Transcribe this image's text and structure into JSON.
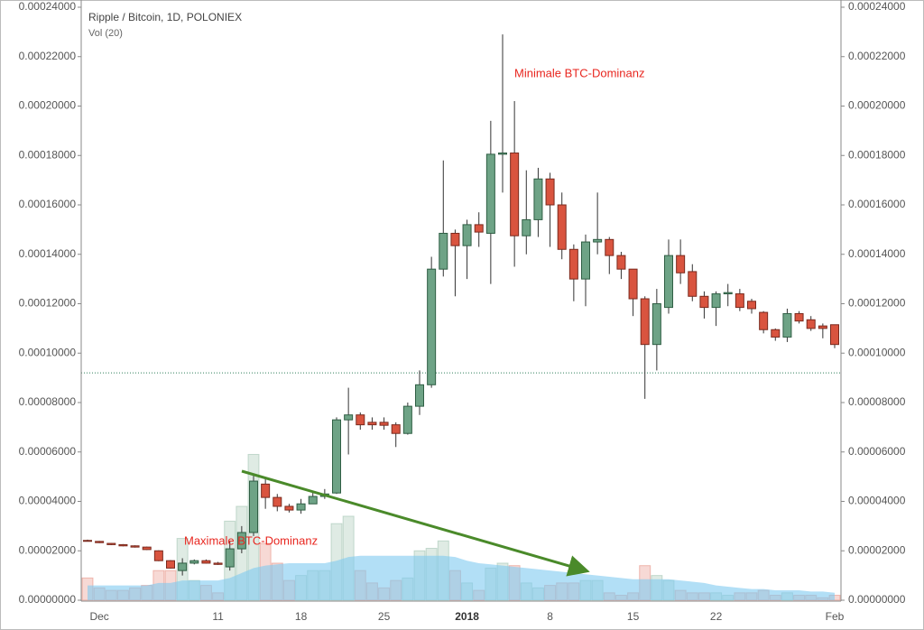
{
  "chart_data": {
    "type": "candlestick",
    "title": "Ripple / Bitcoin, 1D, POLONIEX",
    "subtitle": "Vol (20)",
    "categories": [
      null,
      "Dec",
      null,
      null,
      null,
      null,
      null,
      null,
      null,
      null,
      null,
      "11",
      null,
      null,
      null,
      null,
      null,
      null,
      "18",
      null,
      null,
      null,
      null,
      null,
      null,
      "25",
      null,
      null,
      null,
      null,
      null,
      null,
      "2018",
      null,
      null,
      null,
      null,
      null,
      null,
      "8",
      null,
      null,
      null,
      null,
      null,
      null,
      "15",
      null,
      null,
      null,
      null,
      null,
      null,
      "22",
      null,
      null,
      null,
      null,
      null,
      null,
      null,
      null,
      null,
      "Feb"
    ],
    "open": [
      2.42e-05,
      2.38e-05,
      2.3e-05,
      2.25e-05,
      2.2e-05,
      2.15e-05,
      2e-05,
      1.6e-05,
      1.2e-05,
      1.5e-05,
      1.6e-05,
      1.5e-05,
      1.35e-05,
      2.08e-05,
      2.74e-05,
      4.7e-05,
      4.16e-05,
      3.8e-05,
      3.65e-05,
      3.9e-05,
      4.2e-05,
      4.34e-05,
      7.3e-05,
      7.5e-05,
      7.2e-05,
      7.2e-05,
      7.1e-05,
      6.75e-05,
      7.85e-05,
      8.72e-05,
      0.000134,
      0.0001485,
      0.0001435,
      0.000152,
      0.0001485,
      0.0001805,
      0.000181,
      0.0001475,
      0.000154,
      0.0001705,
      0.00016,
      0.000142,
      0.00013,
      0.000145,
      0.000146,
      0.0001395,
      0.000134,
      0.000122,
      0.0001035,
      0.0001185,
      0.0001395,
      0.000133,
      0.000123,
      0.0001185,
      0.000124,
      0.000124,
      0.000121,
      0.0001165,
      0.0001095,
      0.0001065,
      0.000116,
      0.0001135,
      0.000111,
      0.0001115
    ],
    "high": [
      2.45e-05,
      2.4e-05,
      2.32e-05,
      2.27e-05,
      2.22e-05,
      2.17e-05,
      2.02e-05,
      1.62e-05,
      1.7e-05,
      1.65e-05,
      1.65e-05,
      1.55e-05,
      2.4e-05,
      3e-05,
      5.1e-05,
      4.9e-05,
      4.3e-05,
      3.9e-05,
      4.1e-05,
      4.4e-05,
      4.5e-05,
      7.4e-05,
      8.6e-05,
      7.6e-05,
      7.4e-05,
      7.4e-05,
      7.2e-05,
      8e-05,
      9.3e-05,
      0.000139,
      0.000178,
      0.00015,
      0.000154,
      0.000157,
      0.000194,
      0.000229,
      0.000202,
      0.000174,
      0.000175,
      0.000173,
      0.000165,
      0.000144,
      0.000148,
      0.000165,
      0.000147,
      0.000141,
      0.000134,
      0.000123,
      0.000126,
      0.000146,
      0.000146,
      0.000136,
      0.000125,
      0.000125,
      0.000128,
      0.000126,
      0.000122,
      0.000117,
      0.00011,
      0.000118,
      0.000117,
      0.000115,
      0.000112,
      0.0001115
    ],
    "low": [
      2.38e-05,
      2.31e-05,
      2.23e-05,
      2.18e-05,
      2.13e-05,
      2.03e-05,
      1.58e-05,
      1.28e-05,
      1e-05,
      1.45e-05,
      1.48e-05,
      1.43e-05,
      1.2e-05,
      1.9e-05,
      2.6e-05,
      3.7e-05,
      3.6e-05,
      3.55e-05,
      3.5e-05,
      3.9e-05,
      4.1e-05,
      4.3e-05,
      5.9e-05,
      6.9e-05,
      6.9e-05,
      6.9e-05,
      6.2e-05,
      6.7e-05,
      7.5e-05,
      8.6e-05,
      0.000131,
      0.000123,
      0.00013,
      0.000143,
      0.000128,
      0.000165,
      0.000135,
      0.00014,
      0.000147,
      0.000143,
      0.000138,
      0.000121,
      0.000119,
      0.00014,
      0.000132,
      0.00013,
      0.000115,
      8.15e-05,
      9.3e-05,
      0.000116,
      0.000128,
      0.000121,
      0.000114,
      0.000111,
      0.000119,
      0.000117,
      0.000116,
      0.000108,
      0.000105,
      0.0001045,
      0.000112,
      0.000109,
      0.000106,
      0.000102
    ],
    "close": [
      2.4e-05,
      2.33e-05,
      2.25e-05,
      2.2e-05,
      2.15e-05,
      2.05e-05,
      1.6e-05,
      1.3e-05,
      1.5e-05,
      1.6e-05,
      1.5e-05,
      1.45e-05,
      2.08e-05,
      2.74e-05,
      4.82e-05,
      4.16e-05,
      3.8e-05,
      3.65e-05,
      3.9e-05,
      4.2e-05,
      4.3e-05,
      7.3e-05,
      7.5e-05,
      7.1e-05,
      7.1e-05,
      7.08e-05,
      6.75e-05,
      7.85e-05,
      8.72e-05,
      0.000134,
      0.0001485,
      0.0001435,
      0.000152,
      0.000149,
      0.0001805,
      0.000181,
      0.0001475,
      0.000154,
      0.0001705,
      0.00016,
      0.000142,
      0.00013,
      0.000145,
      0.000146,
      0.0001395,
      0.000134,
      0.000122,
      0.0001035,
      0.00012,
      0.0001395,
      0.0001325,
      0.000123,
      0.0001185,
      0.000124,
      0.0001245,
      0.0001185,
      0.000118,
      0.0001095,
      0.0001065,
      0.000116,
      0.000113,
      0.00011,
      0.00011,
      0.0001035
    ],
    "volume": [
      9e-06,
      5e-06,
      4e-06,
      4e-06,
      5e-06,
      6e-06,
      1.2e-05,
      1.2e-05,
      2.5e-05,
      8e-06,
      6e-06,
      3e-06,
      3.2e-05,
      3.8e-05,
      5.9e-05,
      2.3e-05,
      1.5e-05,
      8e-06,
      1e-05,
      1.2e-05,
      1.2e-05,
      3.1e-05,
      3.4e-05,
      1.2e-05,
      7e-06,
      5e-06,
      8e-06,
      9e-06,
      2e-05,
      2.1e-05,
      2.4e-05,
      1.2e-05,
      7e-06,
      4e-06,
      1.3e-05,
      1.5e-05,
      1.4e-05,
      7e-06,
      5e-06,
      6e-06,
      7e-06,
      7e-06,
      8e-06,
      8e-06,
      3e-06,
      2e-06,
      3e-06,
      1.4e-05,
      1e-05,
      8e-06,
      4e-06,
      3e-06,
      3e-06,
      3e-06,
      2e-06,
      3e-06,
      3e-06,
      4e-06,
      2e-06,
      3e-06,
      2e-06,
      2e-06,
      1e-06,
      2e-06
    ],
    "volume_ma": [
      6e-06,
      6e-06,
      6e-06,
      6e-06,
      6e-06,
      6e-06,
      7e-06,
      7e-06,
      8e-06,
      8e-06,
      8e-06,
      8e-06,
      9e-06,
      1.1e-05,
      1.3e-05,
      1.4e-05,
      1.45e-05,
      1.5e-05,
      1.5e-05,
      1.5e-05,
      1.5e-05,
      1.6e-05,
      1.75e-05,
      1.8e-05,
      1.8e-05,
      1.8e-05,
      1.8e-05,
      1.8e-05,
      1.8e-05,
      1.8e-05,
      1.8e-05,
      1.75e-05,
      1.6e-05,
      1.5e-05,
      1.45e-05,
      1.4e-05,
      1.35e-05,
      1.3e-05,
      1.25e-05,
      1.2e-05,
      1.15e-05,
      1.1e-05,
      1.05e-05,
      1e-05,
      9.5e-06,
      9e-06,
      8.5e-06,
      8.5e-06,
      8.5e-06,
      8.5e-06,
      8e-06,
      7.5e-06,
      7e-06,
      6e-06,
      5.5e-06,
      5e-06,
      4.5e-06,
      4.5e-06,
      4e-06,
      4e-06,
      4e-06,
      3.5e-06,
      3.5e-06,
      3e-06
    ],
    "up_color": "#6ea386",
    "down_color": "#d9543f",
    "volume_ma_color": "#7fcaf0",
    "price_line": 9.2e-05,
    "ylim": [
      0,
      0.00024
    ],
    "yticks": [
      {
        "value": 0,
        "label": "0.00000000"
      },
      {
        "value": 2e-05,
        "label": "0.00002000"
      },
      {
        "value": 4e-05,
        "label": "0.00004000"
      },
      {
        "value": 6e-05,
        "label": "0.00006000"
      },
      {
        "value": 8e-05,
        "label": "0.00008000"
      },
      {
        "value": 0.0001,
        "label": "0.00010000"
      },
      {
        "value": 0.00012,
        "label": "0.00012000"
      },
      {
        "value": 0.00014,
        "label": "0.00014000"
      },
      {
        "value": 0.00016,
        "label": "0.00016000"
      },
      {
        "value": 0.00018,
        "label": "0.00018000"
      },
      {
        "value": 0.0002,
        "label": "0.00020000"
      },
      {
        "value": 0.00022,
        "label": "0.00022000"
      },
      {
        "value": 0.00024,
        "label": "0.00024000"
      }
    ],
    "annotations": [
      "Minimale BTC-Dominanz",
      "Maximale BTC-Dominanz"
    ]
  }
}
